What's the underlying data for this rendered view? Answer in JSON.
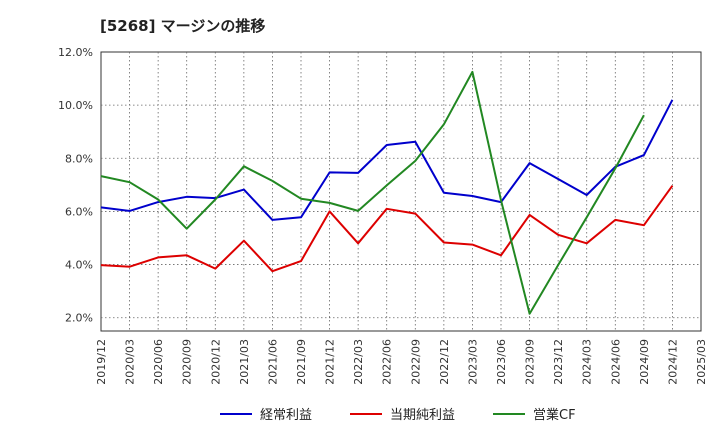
{
  "chart_data": {
    "type": "line",
    "title": "[5268]  マージンの推移",
    "x": [
      "2019/12",
      "2020/03",
      "2020/06",
      "2020/09",
      "2020/12",
      "2021/03",
      "2021/06",
      "2021/09",
      "2021/12",
      "2022/03",
      "2022/06",
      "2022/09",
      "2022/12",
      "2023/03",
      "2023/06",
      "2023/09",
      "2023/12",
      "2024/03",
      "2024/06",
      "2024/09",
      "2024/12",
      "2025/03"
    ],
    "yticks": [
      "2.0%",
      "4.0%",
      "6.0%",
      "8.0%",
      "10.0%",
      "12.0%"
    ],
    "ylim": [
      1.5,
      12.0
    ],
    "grid": true,
    "legend_position": "bottom",
    "series": [
      {
        "name": "経常利益",
        "color": "#0000cc",
        "values": [
          6.15,
          6.02,
          6.35,
          6.55,
          6.5,
          6.82,
          5.68,
          5.78,
          7.47,
          7.45,
          8.5,
          8.62,
          6.7,
          6.58,
          6.35,
          7.82,
          7.22,
          6.62,
          7.68,
          8.12,
          10.2,
          null
        ]
      },
      {
        "name": "当期純利益",
        "color": "#dd0000",
        "values": [
          3.98,
          3.92,
          4.27,
          4.35,
          3.85,
          4.9,
          3.75,
          4.13,
          6.0,
          4.8,
          6.1,
          5.92,
          4.83,
          4.75,
          4.35,
          5.87,
          5.12,
          4.8,
          5.68,
          5.48,
          6.97,
          null
        ]
      },
      {
        "name": "営業CF",
        "color": "#228822",
        "values": [
          7.33,
          7.1,
          6.45,
          5.35,
          6.45,
          7.7,
          7.15,
          6.48,
          6.32,
          6.02,
          6.98,
          7.9,
          9.28,
          11.25,
          6.42,
          2.15,
          3.98,
          5.78,
          7.62,
          9.62,
          null,
          null
        ]
      }
    ]
  }
}
